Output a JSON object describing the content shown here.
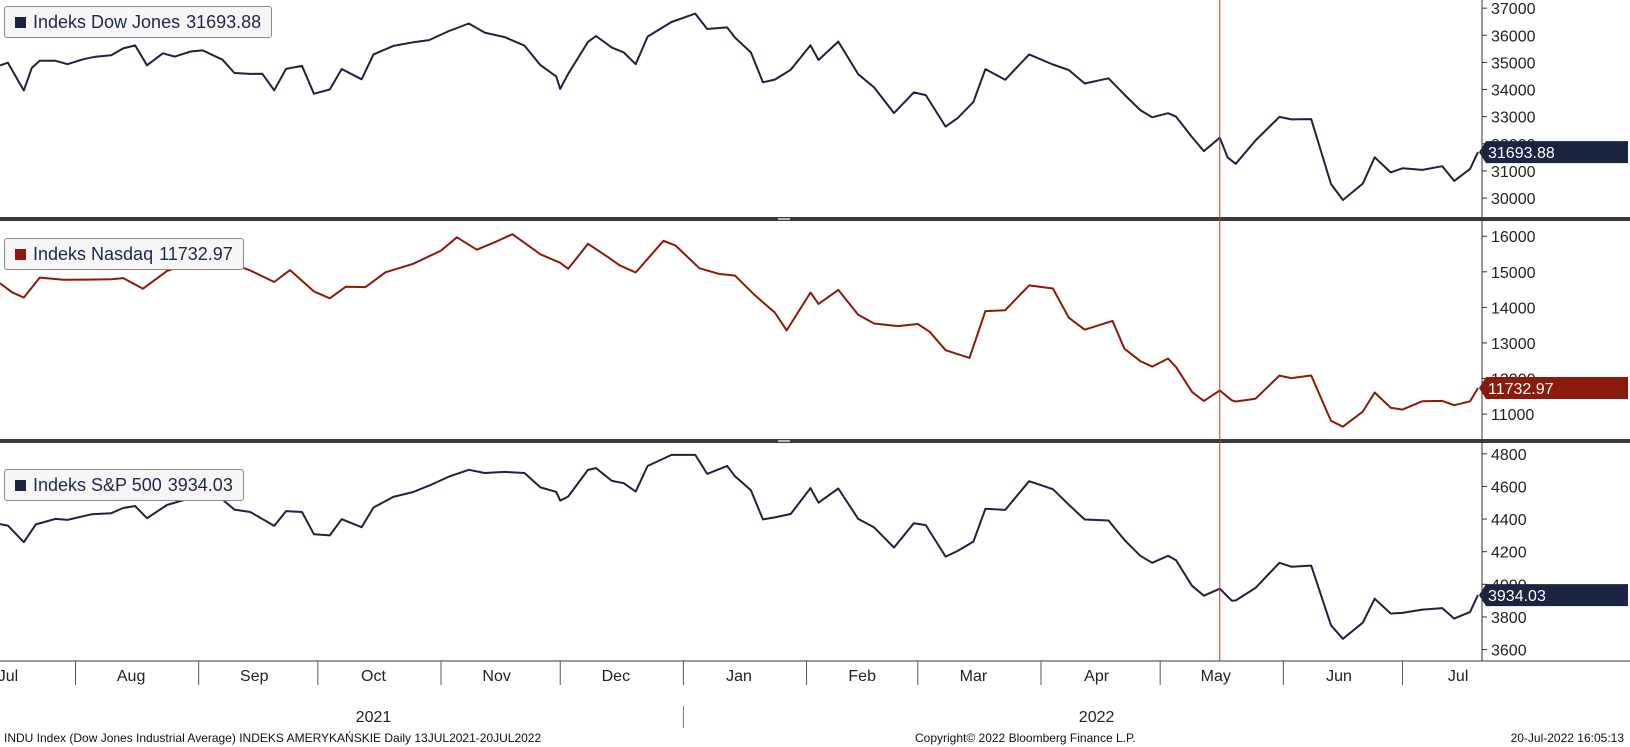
{
  "colors": {
    "dow": "#1b2440",
    "nasdaq": "#8b1a0a",
    "sp500": "#1b2440",
    "marker": "#c0392b"
  },
  "chart_data": [
    {
      "type": "line",
      "series": [
        {
          "name": "Indeks Dow Jones",
          "last_value": "31693.88"
        }
      ],
      "ylim": [
        29300,
        37300
      ],
      "yticks": [
        "30000",
        "31000",
        "32000",
        "33000",
        "34000",
        "35000",
        "36000",
        "37000"
      ],
      "points": [
        [
          "2021-07-13",
          34889
        ],
        [
          "2021-07-15",
          34987
        ],
        [
          "2021-07-19",
          33962
        ],
        [
          "2021-07-21",
          34798
        ],
        [
          "2021-07-23",
          35061
        ],
        [
          "2021-07-27",
          35058
        ],
        [
          "2021-07-30",
          34935
        ],
        [
          "2021-08-03",
          35116
        ],
        [
          "2021-08-06",
          35208
        ],
        [
          "2021-08-10",
          35264
        ],
        [
          "2021-08-13",
          35515
        ],
        [
          "2021-08-16",
          35625
        ],
        [
          "2021-08-19",
          34894
        ],
        [
          "2021-08-23",
          35335
        ],
        [
          "2021-08-26",
          35213
        ],
        [
          "2021-08-30",
          35400
        ],
        [
          "2021-09-02",
          35443
        ],
        [
          "2021-09-07",
          35100
        ],
        [
          "2021-09-10",
          34607
        ],
        [
          "2021-09-14",
          34577
        ],
        [
          "2021-09-17",
          34584
        ],
        [
          "2021-09-20",
          33970
        ],
        [
          "2021-09-23",
          34764
        ],
        [
          "2021-09-27",
          34869
        ],
        [
          "2021-09-30",
          33844
        ],
        [
          "2021-10-04",
          34002
        ],
        [
          "2021-10-07",
          34755
        ],
        [
          "2021-10-12",
          34378
        ],
        [
          "2021-10-15",
          35295
        ],
        [
          "2021-10-20",
          35609
        ],
        [
          "2021-10-25",
          35741
        ],
        [
          "2021-10-29",
          35820
        ],
        [
          "2021-11-03",
          36157
        ],
        [
          "2021-11-08",
          36432
        ],
        [
          "2021-11-12",
          36100
        ],
        [
          "2021-11-17",
          35931
        ],
        [
          "2021-11-22",
          35619
        ],
        [
          "2021-11-26",
          34899
        ],
        [
          "2021-11-30",
          34484
        ],
        [
          "2021-12-01",
          34022
        ],
        [
          "2021-12-03",
          34580
        ],
        [
          "2021-12-08",
          35755
        ],
        [
          "2021-12-10",
          35971
        ],
        [
          "2021-12-14",
          35544
        ],
        [
          "2021-12-17",
          35366
        ],
        [
          "2021-12-20",
          34933
        ],
        [
          "2021-12-23",
          35950
        ],
        [
          "2021-12-29",
          36488
        ],
        [
          "2022-01-04",
          36799
        ],
        [
          "2022-01-07",
          36232
        ],
        [
          "2022-01-12",
          36290
        ],
        [
          "2022-01-14",
          35912
        ],
        [
          "2022-01-18",
          35368
        ],
        [
          "2022-01-21",
          34265
        ],
        [
          "2022-01-24",
          34364
        ],
        [
          "2022-01-28",
          34725
        ],
        [
          "2022-02-02",
          35629
        ],
        [
          "2022-02-04",
          35089
        ],
        [
          "2022-02-09",
          35768
        ],
        [
          "2022-02-14",
          34566
        ],
        [
          "2022-02-18",
          34079
        ],
        [
          "2022-02-23",
          33131
        ],
        [
          "2022-02-28",
          33893
        ],
        [
          "2022-03-03",
          33795
        ],
        [
          "2022-03-08",
          32632
        ],
        [
          "2022-03-11",
          32944
        ],
        [
          "2022-03-15",
          33544
        ],
        [
          "2022-03-18",
          34754
        ],
        [
          "2022-03-23",
          34358
        ],
        [
          "2022-03-29",
          35294
        ],
        [
          "2022-04-04",
          34922
        ],
        [
          "2022-04-08",
          34721
        ],
        [
          "2022-04-12",
          34220
        ],
        [
          "2022-04-18",
          34412
        ],
        [
          "2022-04-22",
          33811
        ],
        [
          "2022-04-26",
          33240
        ],
        [
          "2022-04-29",
          32977
        ],
        [
          "2022-05-03",
          33128
        ],
        [
          "2022-05-05",
          32997
        ],
        [
          "2022-05-09",
          32245
        ],
        [
          "2022-05-12",
          31730
        ],
        [
          "2022-05-16",
          32223
        ],
        [
          "2022-05-18",
          31490
        ],
        [
          "2022-05-20",
          31262
        ],
        [
          "2022-05-25",
          32120
        ],
        [
          "2022-05-31",
          32990
        ],
        [
          "2022-06-03",
          32899
        ],
        [
          "2022-06-08",
          32910
        ],
        [
          "2022-06-13",
          30516
        ],
        [
          "2022-06-16",
          29927
        ],
        [
          "2022-06-21",
          30530
        ],
        [
          "2022-06-24",
          31500
        ],
        [
          "2022-06-28",
          30946
        ],
        [
          "2022-07-01",
          31097
        ],
        [
          "2022-07-06",
          31037
        ],
        [
          "2022-07-11",
          31173
        ],
        [
          "2022-07-14",
          30630
        ],
        [
          "2022-07-18",
          31072
        ],
        [
          "2022-07-20",
          31693.88
        ]
      ]
    },
    {
      "type": "line",
      "series": [
        {
          "name": "Indeks Nasdaq",
          "last_value": "11732.97"
        }
      ],
      "ylim": [
        10300,
        16400
      ],
      "yticks": [
        "11000",
        "12000",
        "13000",
        "14000",
        "15000",
        "16000"
      ],
      "points": [
        [
          "2021-07-13",
          14678
        ],
        [
          "2021-07-16",
          14427
        ],
        [
          "2021-07-19",
          14275
        ],
        [
          "2021-07-23",
          14837
        ],
        [
          "2021-07-29",
          14778
        ],
        [
          "2021-08-04",
          14780
        ],
        [
          "2021-08-10",
          14788
        ],
        [
          "2021-08-13",
          14822
        ],
        [
          "2021-08-18",
          14526
        ],
        [
          "2021-08-24",
          15019
        ],
        [
          "2021-08-30",
          15265
        ],
        [
          "2021-09-03",
          15363
        ],
        [
          "2021-09-08",
          15287
        ],
        [
          "2021-09-14",
          15037
        ],
        [
          "2021-09-20",
          14713
        ],
        [
          "2021-09-24",
          15047
        ],
        [
          "2021-09-30",
          14448
        ],
        [
          "2021-10-04",
          14255
        ],
        [
          "2021-10-08",
          14579
        ],
        [
          "2021-10-13",
          14571
        ],
        [
          "2021-10-18",
          14987
        ],
        [
          "2021-10-25",
          15226
        ],
        [
          "2021-11-01",
          15595
        ],
        [
          "2021-11-05",
          15971
        ],
        [
          "2021-11-10",
          15622
        ],
        [
          "2021-11-15",
          15854
        ],
        [
          "2021-11-19",
          16057
        ],
        [
          "2021-11-26",
          15491
        ],
        [
          "2021-12-01",
          15254
        ],
        [
          "2021-12-03",
          15085
        ],
        [
          "2021-12-08",
          15786
        ],
        [
          "2021-12-13",
          15413
        ],
        [
          "2021-12-16",
          15180
        ],
        [
          "2021-12-20",
          14980
        ],
        [
          "2021-12-27",
          15871
        ],
        [
          "2021-12-30",
          15741
        ],
        [
          "2022-01-05",
          15100
        ],
        [
          "2022-01-10",
          14942
        ],
        [
          "2022-01-14",
          14893
        ],
        [
          "2022-01-19",
          14340
        ],
        [
          "2022-01-24",
          13855
        ],
        [
          "2022-01-27",
          13353
        ],
        [
          "2022-02-02",
          14417
        ],
        [
          "2022-02-04",
          14098
        ],
        [
          "2022-02-09",
          14490
        ],
        [
          "2022-02-14",
          13790
        ],
        [
          "2022-02-18",
          13548
        ],
        [
          "2022-02-24",
          13473
        ],
        [
          "2022-03-01",
          13532
        ],
        [
          "2022-03-04",
          13313
        ],
        [
          "2022-03-08",
          12795
        ],
        [
          "2022-03-14",
          12581
        ],
        [
          "2022-03-18",
          13894
        ],
        [
          "2022-03-23",
          13922
        ],
        [
          "2022-03-29",
          14619
        ],
        [
          "2022-04-04",
          14532
        ],
        [
          "2022-04-08",
          13711
        ],
        [
          "2022-04-12",
          13372
        ],
        [
          "2022-04-19",
          13619
        ],
        [
          "2022-04-22",
          12839
        ],
        [
          "2022-04-26",
          12490
        ],
        [
          "2022-04-29",
          12335
        ],
        [
          "2022-05-03",
          12563
        ],
        [
          "2022-05-05",
          12317
        ],
        [
          "2022-05-09",
          11623
        ],
        [
          "2022-05-12",
          11370
        ],
        [
          "2022-05-16",
          11662
        ],
        [
          "2022-05-19",
          11389
        ],
        [
          "2022-05-20",
          11354
        ],
        [
          "2022-05-25",
          11434
        ],
        [
          "2022-05-31",
          12081
        ],
        [
          "2022-06-03",
          12013
        ],
        [
          "2022-06-08",
          12086
        ],
        [
          "2022-06-13",
          10809
        ],
        [
          "2022-06-16",
          10646
        ],
        [
          "2022-06-21",
          11069
        ],
        [
          "2022-06-24",
          11607
        ],
        [
          "2022-06-28",
          11181
        ],
        [
          "2022-07-01",
          11127
        ],
        [
          "2022-07-06",
          11362
        ],
        [
          "2022-07-11",
          11372
        ],
        [
          "2022-07-14",
          11251
        ],
        [
          "2022-07-18",
          11360
        ],
        [
          "2022-07-20",
          11732.97
        ]
      ]
    },
    {
      "type": "line",
      "series": [
        {
          "name": "Indeks S&P 500",
          "last_value": "3934.03"
        }
      ],
      "ylim": [
        3530,
        4860
      ],
      "yticks": [
        "3600",
        "3800",
        "4000",
        "4200",
        "4400",
        "4600",
        "4800"
      ],
      "points": [
        [
          "2021-07-13",
          4369
        ],
        [
          "2021-07-15",
          4360
        ],
        [
          "2021-07-19",
          4258
        ],
        [
          "2021-07-22",
          4367
        ],
        [
          "2021-07-27",
          4401
        ],
        [
          "2021-07-30",
          4395
        ],
        [
          "2021-08-05",
          4429
        ],
        [
          "2021-08-10",
          4436
        ],
        [
          "2021-08-13",
          4468
        ],
        [
          "2021-08-16",
          4480
        ],
        [
          "2021-08-19",
          4405
        ],
        [
          "2021-08-24",
          4486
        ],
        [
          "2021-08-30",
          4529
        ],
        [
          "2021-09-02",
          4537
        ],
        [
          "2021-09-07",
          4520
        ],
        [
          "2021-09-10",
          4458
        ],
        [
          "2021-09-14",
          4443
        ],
        [
          "2021-09-20",
          4358
        ],
        [
          "2021-09-23",
          4449
        ],
        [
          "2021-09-27",
          4443
        ],
        [
          "2021-09-30",
          4307
        ],
        [
          "2021-10-04",
          4300
        ],
        [
          "2021-10-07",
          4399
        ],
        [
          "2021-10-12",
          4350
        ],
        [
          "2021-10-15",
          4471
        ],
        [
          "2021-10-20",
          4536
        ],
        [
          "2021-10-25",
          4566
        ],
        [
          "2021-10-29",
          4605
        ],
        [
          "2021-11-03",
          4660
        ],
        [
          "2021-11-08",
          4702
        ],
        [
          "2021-11-12",
          4682
        ],
        [
          "2021-11-17",
          4689
        ],
        [
          "2021-11-22",
          4682
        ],
        [
          "2021-11-26",
          4594
        ],
        [
          "2021-11-30",
          4567
        ],
        [
          "2021-12-01",
          4513
        ],
        [
          "2021-12-03",
          4538
        ],
        [
          "2021-12-08",
          4701
        ],
        [
          "2021-12-10",
          4712
        ],
        [
          "2021-12-14",
          4634
        ],
        [
          "2021-12-17",
          4620
        ],
        [
          "2021-12-20",
          4568
        ],
        [
          "2021-12-23",
          4725
        ],
        [
          "2021-12-29",
          4793
        ],
        [
          "2022-01-04",
          4793
        ],
        [
          "2022-01-07",
          4677
        ],
        [
          "2022-01-12",
          4726
        ],
        [
          "2022-01-14",
          4662
        ],
        [
          "2022-01-18",
          4577
        ],
        [
          "2022-01-21",
          4398
        ],
        [
          "2022-01-24",
          4410
        ],
        [
          "2022-01-28",
          4431
        ],
        [
          "2022-02-02",
          4590
        ],
        [
          "2022-02-04",
          4500
        ],
        [
          "2022-02-09",
          4587
        ],
        [
          "2022-02-14",
          4401
        ],
        [
          "2022-02-18",
          4349
        ],
        [
          "2022-02-23",
          4225
        ],
        [
          "2022-02-28",
          4374
        ],
        [
          "2022-03-03",
          4363
        ],
        [
          "2022-03-08",
          4170
        ],
        [
          "2022-03-11",
          4204
        ],
        [
          "2022-03-15",
          4262
        ],
        [
          "2022-03-18",
          4463
        ],
        [
          "2022-03-23",
          4456
        ],
        [
          "2022-03-29",
          4632
        ],
        [
          "2022-04-04",
          4583
        ],
        [
          "2022-04-08",
          4488
        ],
        [
          "2022-04-12",
          4397
        ],
        [
          "2022-04-18",
          4391
        ],
        [
          "2022-04-22",
          4272
        ],
        [
          "2022-04-26",
          4175
        ],
        [
          "2022-04-29",
          4132
        ],
        [
          "2022-05-03",
          4175
        ],
        [
          "2022-05-05",
          4147
        ],
        [
          "2022-05-09",
          3991
        ],
        [
          "2022-05-12",
          3930
        ],
        [
          "2022-05-16",
          3973
        ],
        [
          "2022-05-19",
          3900
        ],
        [
          "2022-05-20",
          3901
        ],
        [
          "2022-05-25",
          3978
        ],
        [
          "2022-05-31",
          4132
        ],
        [
          "2022-06-03",
          4108
        ],
        [
          "2022-06-08",
          4115
        ],
        [
          "2022-06-13",
          3749
        ],
        [
          "2022-06-16",
          3666
        ],
        [
          "2022-06-21",
          3765
        ],
        [
          "2022-06-24",
          3912
        ],
        [
          "2022-06-28",
          3821
        ],
        [
          "2022-07-01",
          3825
        ],
        [
          "2022-07-06",
          3845
        ],
        [
          "2022-07-11",
          3854
        ],
        [
          "2022-07-14",
          3790
        ],
        [
          "2022-07-18",
          3831
        ],
        [
          "2022-07-20",
          3934.03
        ]
      ]
    }
  ],
  "x_axis": {
    "xlim": [
      "2021-07-13",
      "2022-07-21"
    ],
    "month_ticks": [
      {
        "label": "Jul",
        "date": "2021-07-15"
      },
      {
        "label": "Aug",
        "date": "2021-08-15"
      },
      {
        "label": "Sep",
        "date": "2021-09-15"
      },
      {
        "label": "Oct",
        "date": "2021-10-15"
      },
      {
        "label": "Nov",
        "date": "2021-11-15"
      },
      {
        "label": "Dec",
        "date": "2021-12-15"
      },
      {
        "label": "Jan",
        "date": "2022-01-15"
      },
      {
        "label": "Feb",
        "date": "2022-02-15"
      },
      {
        "label": "Mar",
        "date": "2022-03-15"
      },
      {
        "label": "Apr",
        "date": "2022-04-15"
      },
      {
        "label": "May",
        "date": "2022-05-15"
      },
      {
        "label": "Jun",
        "date": "2022-06-15"
      },
      {
        "label": "Jul",
        "date": "2022-07-15"
      }
    ],
    "month_starts": [
      "2021-08-01",
      "2021-09-01",
      "2021-10-01",
      "2021-11-01",
      "2021-12-01",
      "2022-01-01",
      "2022-02-01",
      "2022-03-01",
      "2022-04-01",
      "2022-05-01",
      "2022-06-01",
      "2022-07-01"
    ],
    "years": [
      {
        "label": "2021",
        "date": "2021-10-15"
      },
      {
        "label": "2022",
        "date": "2022-04-15"
      }
    ],
    "year_boundary": "2022-01-01",
    "marker_date": "2022-05-16"
  },
  "footer": {
    "left": "INDU Index (Dow Jones Industrial Average) INDEKS AMERYKAŃSKIE  Daily 13JUL2021-20JUL2022",
    "center": "Copyright© 2022 Bloomberg Finance L.P.",
    "right": "20-Jul-2022 16:05:13"
  }
}
